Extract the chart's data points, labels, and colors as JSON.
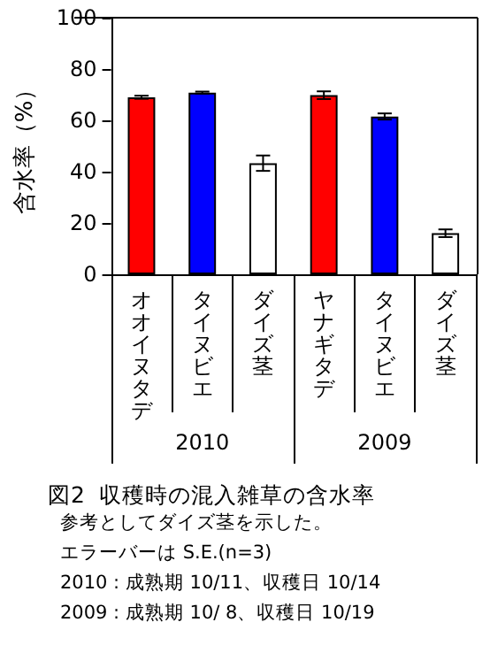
{
  "chart_data": {
    "type": "bar",
    "title": "図2  収穫時の混入雑草の含水率",
    "ylabel": "含水率（%）",
    "categories": [
      "オオイヌタデ",
      "タイヌビエ",
      "ダイズ茎",
      "ヤナギタデ",
      "タイヌビエ",
      "ダイズ茎"
    ],
    "values": [
      69,
      70.8,
      43.3,
      69.8,
      61.5,
      16
    ],
    "colors": [
      "#ff0000",
      "#0000ff",
      "#ffffff",
      "#ff0000",
      "#0000ff",
      "#ffffff"
    ],
    "errors": [
      0.6,
      0.4,
      3,
      1.5,
      1.2,
      1.5
    ],
    "ylim": [
      0,
      100
    ],
    "yticks": [
      0,
      20,
      40,
      60,
      80,
      100
    ],
    "grid": false,
    "annotations": [
      "2010",
      "2009",
      "参考としてダイズ茎を示した。",
      "エラーバーは S.E.(n=3)",
      "2010 : 成熟期 10/11、収穫日 10/14",
      "2009 : 成熟期 10/ 8、収穫日 10/19"
    ]
  }
}
